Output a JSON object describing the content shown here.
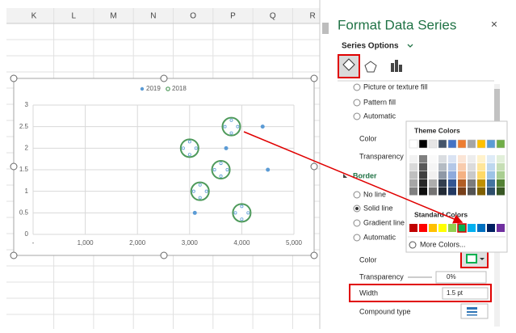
{
  "columns": [
    "K",
    "L",
    "M",
    "N",
    "O",
    "P",
    "Q",
    "R"
  ],
  "chart": {
    "type": "scatter",
    "series": [
      {
        "name": "2019",
        "color": "#5b9bd5",
        "x": [
          4400,
          3700,
          4500,
          3100
        ],
        "values": [
          2.5,
          2,
          1.5,
          0.5
        ]
      },
      {
        "name": "2018",
        "color": "#4e9a5b",
        "x": [
          3800,
          3000,
          3600,
          3200,
          4000
        ],
        "values": [
          2.5,
          2,
          1.5,
          1,
          0.5
        ]
      }
    ],
    "xlim": [
      0,
      5000
    ],
    "xticks": [
      {
        "value": 0,
        "label": "-"
      },
      {
        "value": 1000,
        "label": "1,000"
      },
      {
        "value": 2000,
        "label": "2,000"
      },
      {
        "value": 3000,
        "label": "3,000"
      },
      {
        "value": 4000,
        "label": "4,000"
      },
      {
        "value": 5000,
        "label": "5,000"
      }
    ],
    "ylim": [
      0,
      3
    ],
    "yticks": [
      0,
      0.5,
      1,
      1.5,
      2,
      2.5,
      3
    ],
    "grid": true
  },
  "pane": {
    "title": "Format Data Series",
    "close": "×",
    "tab": "Series Options",
    "fill_options": [
      "Picture or texture fill",
      "Pattern fill",
      "Automatic"
    ],
    "fill_color": "Color",
    "fill_transparency": "Transparency",
    "border": "Border",
    "line_options": [
      "No line",
      "Solid line",
      "Gradient line",
      "Automatic"
    ],
    "border_color": "Color",
    "border_transparency": "Transparency",
    "transparency_value": "0%",
    "width": "Width",
    "width_value": "1.5 pt",
    "compound": "Compound type"
  },
  "color_picker": {
    "theme": "Theme Colors",
    "standard": "Standard Colors",
    "more": "More Colors..."
  }
}
